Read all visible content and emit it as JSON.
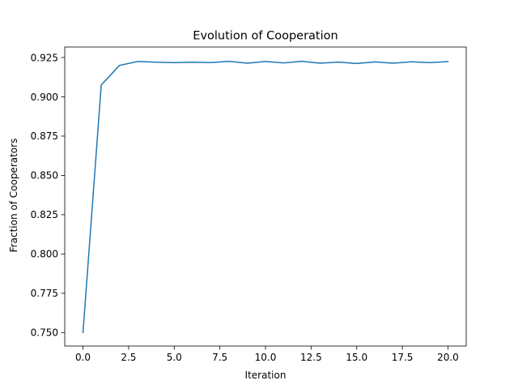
{
  "chart_data": {
    "type": "line",
    "title": "Evolution of Cooperation",
    "xlabel": "Iteration",
    "ylabel": "Fraction of Cooperators",
    "xlim": [
      -1.0,
      21.0
    ],
    "ylim": [
      0.7414,
      0.9317
    ],
    "xticks": [
      0.0,
      2.5,
      5.0,
      7.5,
      10.0,
      12.5,
      15.0,
      17.5,
      20.0
    ],
    "xtick_labels": [
      "0.0",
      "2.5",
      "5.0",
      "7.5",
      "10.0",
      "12.5",
      "15.0",
      "17.5",
      "20.0"
    ],
    "yticks": [
      0.75,
      0.775,
      0.8,
      0.825,
      0.85,
      0.875,
      0.9,
      0.925
    ],
    "ytick_labels": [
      "0.750",
      "0.775",
      "0.800",
      "0.825",
      "0.850",
      "0.875",
      "0.900",
      "0.925"
    ],
    "grid": false,
    "legend": "none",
    "series": [
      {
        "color": "#1f77b4",
        "x": [
          0,
          1,
          2,
          3,
          4,
          5,
          6,
          7,
          8,
          9,
          10,
          11,
          12,
          13,
          14,
          15,
          16,
          17,
          18,
          19,
          20
        ],
        "y": [
          0.75,
          0.9075,
          0.92,
          0.9225,
          0.922,
          0.9218,
          0.922,
          0.9218,
          0.9226,
          0.9214,
          0.9225,
          0.9216,
          0.9226,
          0.9214,
          0.9221,
          0.9212,
          0.9222,
          0.9214,
          0.9223,
          0.9218,
          0.9224
        ]
      }
    ]
  }
}
